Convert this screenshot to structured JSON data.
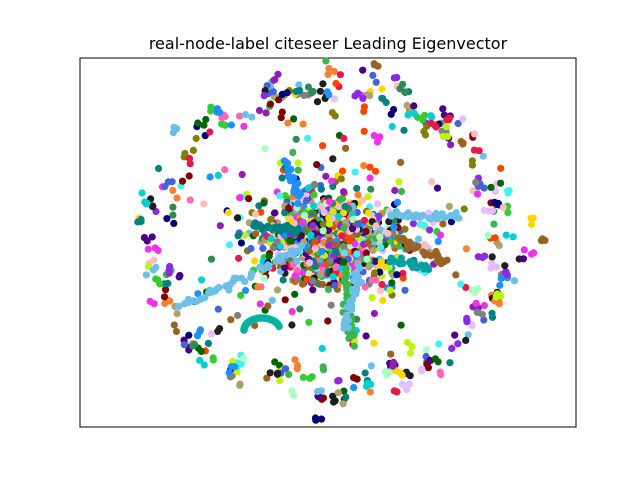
{
  "figure": {
    "title": "real-node-label citeseer Leading Eigenvector"
  },
  "chart_data": {
    "type": "scatter",
    "title": "real-node-label citeseer Leading Eigenvector",
    "axes_visible": false,
    "grid": false,
    "legend": "none",
    "layout": "force-directed network: dense multicolor central core surrounded by a ring of small colored node clusters",
    "palette": [
      "#1f1f1f",
      "#e6194b",
      "#3cb44b",
      "#4363d8",
      "#f58231",
      "#911eb4",
      "#46f0f0",
      "#f032e6",
      "#bcf60c",
      "#fabebe",
      "#008080",
      "#e6beff",
      "#9a6324",
      "#800000",
      "#aaffc3",
      "#808000",
      "#000075",
      "#808080",
      "#6cbfe6",
      "#2e8b57",
      "#ff69b4",
      "#1e90ff",
      "#32cd32",
      "#8a2be2",
      "#ff4500",
      "#00ced1",
      "#ffd700",
      "#006400",
      "#b0a070",
      "#4b0082"
    ]
  }
}
